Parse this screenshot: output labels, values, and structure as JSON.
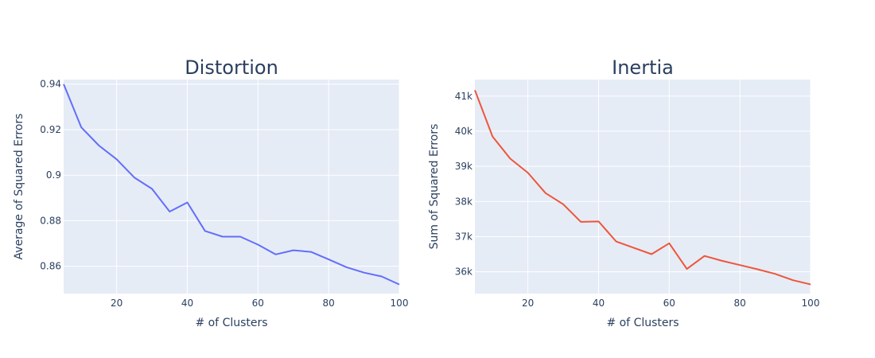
{
  "chart_data": [
    {
      "type": "line",
      "title": "Distortion",
      "xlabel": "# of Clusters",
      "ylabel": "Average of Squared Errors",
      "xlim": [
        5,
        100
      ],
      "ylim": [
        0.848,
        0.942
      ],
      "xticks": [
        20,
        40,
        60,
        80,
        100
      ],
      "xtick_labels": [
        "20",
        "40",
        "60",
        "80",
        "100"
      ],
      "yticks": [
        0.86,
        0.88,
        0.9,
        0.92,
        0.94
      ],
      "ytick_labels": [
        "0.86",
        "0.88",
        "0.9",
        "0.92",
        "0.94"
      ],
      "grid": true,
      "color": "#636efa",
      "x": [
        5,
        10,
        15,
        20,
        25,
        30,
        35,
        40,
        45,
        50,
        55,
        60,
        65,
        70,
        75,
        80,
        85,
        90,
        95,
        100
      ],
      "y": [
        0.94,
        0.921,
        0.913,
        0.907,
        0.899,
        0.894,
        0.884,
        0.888,
        0.8755,
        0.873,
        0.873,
        0.8695,
        0.8652,
        0.867,
        0.8663,
        0.863,
        0.8596,
        0.8572,
        0.8555,
        0.852
      ]
    },
    {
      "type": "line",
      "title": "Inertia",
      "xlabel": "# of Clusters",
      "ylabel": "Sum of Squared Errors",
      "xlim": [
        5,
        100
      ],
      "ylim": [
        35380,
        41470
      ],
      "xticks": [
        20,
        40,
        60,
        80,
        100
      ],
      "xtick_labels": [
        "20",
        "40",
        "60",
        "80",
        "100"
      ],
      "yticks": [
        36000,
        37000,
        38000,
        39000,
        40000,
        41000
      ],
      "ytick_labels": [
        "36k",
        "37k",
        "38k",
        "39k",
        "40k",
        "41k"
      ],
      "grid": true,
      "color": "#ef553b",
      "x": [
        5,
        10,
        15,
        20,
        25,
        30,
        35,
        40,
        45,
        50,
        55,
        60,
        65,
        70,
        75,
        80,
        85,
        90,
        95,
        100
      ],
      "y": [
        41170,
        39850,
        39220,
        38820,
        38240,
        37920,
        37420,
        37430,
        36860,
        36680,
        36500,
        36810,
        36080,
        36450,
        36310,
        36190,
        36070,
        35940,
        35760,
        35640
      ]
    }
  ]
}
